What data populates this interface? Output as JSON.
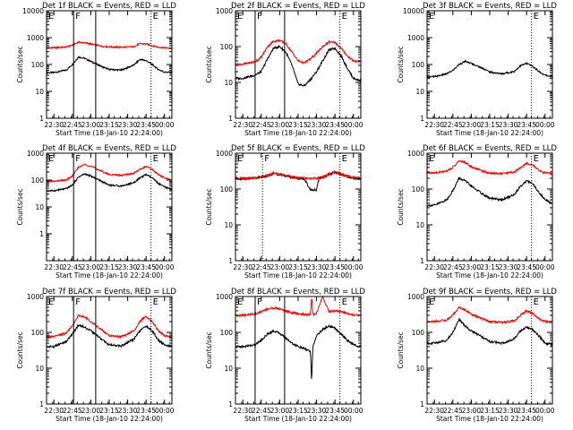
{
  "colors": {
    "events": "#000000",
    "lld": "#ff0000",
    "frame": "#000000",
    "background": "#ffffff"
  },
  "x_tick_labels": [
    "22:30",
    "22:45",
    "23:00",
    "23:15",
    "23:30",
    "23:45",
    "00:00"
  ],
  "x_axis_label": "Start Time (18-Jan-10 22:24:00)",
  "y_axis_label": "Counts/sec",
  "marker_labels": {
    "F": "F",
    "E": "E"
  },
  "chart_data": [
    {
      "type": "line",
      "title": "Det 1f BLACK = Events, RED = LLD",
      "xlabel": "Start Time (18-Jan-10 22:24:00)",
      "ylabel": "Counts/sec",
      "xlim_minutes": [
        -6,
        96
      ],
      "ylim": [
        1,
        10000
      ],
      "yscale": "log",
      "y_tick_labels": [
        "1",
        "10",
        "100",
        "1000",
        "10000"
      ],
      "x": [
        0,
        10,
        15,
        20,
        25,
        30,
        40,
        45,
        55,
        65,
        70,
        75,
        80,
        85,
        90,
        96
      ],
      "series": [
        {
          "name": "BLACK = Events",
          "color": "#000000",
          "values": [
            50,
            62,
            100,
            190,
            170,
            130,
            80,
            65,
            62,
            95,
            155,
            140,
            100,
            65,
            52,
            50
          ]
        },
        {
          "name": "RED = LLD",
          "color": "#ff0000",
          "values": [
            420,
            450,
            520,
            680,
            640,
            580,
            470,
            450,
            440,
            460,
            600,
            580,
            500,
            440,
            420,
            400
          ]
        }
      ],
      "vertical_lines": [
        {
          "x": 16,
          "style": "solid",
          "label": "F"
        },
        {
          "x": 34,
          "style": "solid"
        },
        {
          "x": 79,
          "style": "dotted",
          "label": "E"
        }
      ]
    },
    {
      "type": "line",
      "title": "Det 2f BLACK = Events, RED = LLD",
      "xlabel": "Start Time (18-Jan-10 22:24:00)",
      "ylabel": "Counts/sec",
      "xlim_minutes": [
        -6,
        96
      ],
      "ylim": [
        1,
        1000
      ],
      "yscale": "log",
      "y_tick_labels": [
        "1",
        "10",
        "100",
        "1000"
      ],
      "x": [
        0,
        10,
        15,
        20,
        25,
        30,
        35,
        40,
        45,
        50,
        55,
        60,
        65,
        70,
        75,
        80,
        85,
        90,
        96
      ],
      "series": [
        {
          "name": "BLACK = Events",
          "color": "#000000",
          "values": [
            13,
            16,
            20,
            45,
            90,
            100,
            70,
            30,
            9,
            8,
            12,
            20,
            40,
            80,
            90,
            55,
            25,
            13,
            11
          ]
        },
        {
          "name": "RED = LLD",
          "color": "#ff0000",
          "values": [
            32,
            38,
            50,
            100,
            140,
            150,
            120,
            70,
            40,
            35,
            45,
            65,
            100,
            135,
            130,
            90,
            55,
            40,
            38
          ]
        }
      ],
      "vertical_lines": [
        {
          "x": 10,
          "style": "solid",
          "label": "F"
        },
        {
          "x": 34,
          "style": "solid"
        },
        {
          "x": 79,
          "style": "dotted",
          "label": "E"
        }
      ]
    },
    {
      "type": "line",
      "title": "Det 3f BLACK = Events, RED = LLD",
      "xlabel": "Start Time (18-Jan-10 22:24:00)",
      "ylabel": "Counts/sec",
      "xlim_minutes": [
        -6,
        96
      ],
      "ylim": [
        1,
        10000
      ],
      "yscale": "log",
      "y_tick_labels": [
        "1",
        "10",
        "100",
        "1000",
        "10000"
      ],
      "x": [
        0,
        10,
        15,
        20,
        25,
        30,
        40,
        45,
        55,
        65,
        70,
        75,
        80,
        85,
        90,
        96
      ],
      "series": [
        {
          "name": "BLACK = Events",
          "color": "#000000",
          "values": [
            35,
            45,
            60,
            100,
            130,
            110,
            70,
            52,
            45,
            55,
            90,
            110,
            85,
            55,
            40,
            35
          ]
        }
      ],
      "vertical_lines": [
        {
          "x": 79,
          "style": "dotted",
          "label": "E"
        }
      ]
    },
    {
      "type": "line",
      "title": "Det 4f BLACK = Events, RED = LLD",
      "xlabel": "Start Time (18-Jan-10 22:24:00)",
      "ylabel": "Counts/sec",
      "xlim_minutes": [
        -6,
        96
      ],
      "ylim": [
        0.1,
        1000
      ],
      "yscale": "log",
      "y_tick_labels": [
        "1000",
        "100",
        "10",
        "1"
      ],
      "x": [
        0,
        10,
        15,
        20,
        25,
        30,
        40,
        45,
        55,
        65,
        70,
        75,
        80,
        85,
        90,
        96
      ],
      "series": [
        {
          "name": "BLACK = Events",
          "color": "#000000",
          "values": [
            40,
            48,
            65,
            130,
            170,
            140,
            85,
            65,
            60,
            80,
            120,
            160,
            120,
            75,
            55,
            45
          ]
        },
        {
          "name": "RED = LLD",
          "color": "#ff0000",
          "values": [
            90,
            100,
            140,
            300,
            380,
            330,
            200,
            160,
            150,
            180,
            250,
            320,
            250,
            160,
            120,
            100
          ]
        }
      ],
      "vertical_lines": [
        {
          "x": 16,
          "style": "solid",
          "label": "F"
        },
        {
          "x": 34,
          "style": "solid"
        },
        {
          "x": 79,
          "style": "dotted",
          "label": "E"
        }
      ]
    },
    {
      "type": "line",
      "title": "Det 5f BLACK = Events, RED = LLD",
      "xlabel": "Start Time (18-Jan-10 22:24:00)",
      "ylabel": "Counts/sec",
      "xlim_minutes": [
        -6,
        96
      ],
      "ylim": [
        1,
        1000
      ],
      "yscale": "log",
      "y_tick_labels": [
        "1",
        "10",
        "100",
        "1000"
      ],
      "x": [
        0,
        10,
        20,
        25,
        30,
        40,
        45,
        50,
        55,
        60,
        62,
        65,
        70,
        75,
        80,
        90,
        96
      ],
      "series": [
        {
          "name": "BLACK = Events",
          "color": "#000000",
          "values": [
            195,
            200,
            230,
            270,
            250,
            210,
            200,
            190,
            95,
            95,
            200,
            210,
            250,
            290,
            250,
            200,
            190
          ]
        },
        {
          "name": "RED = LLD",
          "color": "#ff0000",
          "values": [
            200,
            205,
            240,
            280,
            260,
            215,
            205,
            200,
            195,
            200,
            205,
            215,
            260,
            300,
            260,
            210,
            200
          ]
        }
      ],
      "vertical_lines": [
        {
          "x": 16,
          "style": "dotted",
          "label": "F"
        },
        {
          "x": 79,
          "style": "dotted",
          "label": "E"
        }
      ]
    },
    {
      "type": "line",
      "title": "Det 6f BLACK = Events, RED = LLD",
      "xlabel": "Start Time (18-Jan-10 22:24:00)",
      "ylabel": "Counts/sec",
      "xlim_minutes": [
        -6,
        96
      ],
      "ylim": [
        1,
        1000
      ],
      "yscale": "log",
      "y_tick_labels": [
        "1",
        "10",
        "100",
        "1000"
      ],
      "x": [
        0,
        10,
        15,
        20,
        25,
        30,
        40,
        45,
        55,
        65,
        70,
        75,
        80,
        85,
        90,
        96
      ],
      "series": [
        {
          "name": "BLACK = Events",
          "color": "#000000",
          "values": [
            35,
            50,
            90,
            200,
            170,
            120,
            70,
            55,
            50,
            70,
            120,
            170,
            140,
            80,
            50,
            40
          ]
        },
        {
          "name": "RED = LLD",
          "color": "#ff0000",
          "values": [
            280,
            320,
            400,
            600,
            550,
            420,
            310,
            280,
            270,
            300,
            400,
            520,
            470,
            330,
            280,
            260
          ]
        }
      ],
      "vertical_lines": [
        {
          "x": 79,
          "style": "dotted",
          "label": "E"
        }
      ]
    },
    {
      "type": "line",
      "title": "Det 7f BLACK = Events, RED = LLD",
      "xlabel": "Start Time (18-Jan-10 22:24:00)",
      "ylabel": "Counts/sec",
      "xlim_minutes": [
        -6,
        96
      ],
      "ylim": [
        1,
        1000
      ],
      "yscale": "log",
      "y_tick_labels": [
        "1",
        "10",
        "100",
        "1000"
      ],
      "x": [
        0,
        10,
        15,
        20,
        25,
        30,
        40,
        45,
        55,
        65,
        70,
        75,
        80,
        85,
        90,
        96
      ],
      "series": [
        {
          "name": "BLACK = Events",
          "color": "#000000",
          "values": [
            40,
            55,
            90,
            160,
            140,
            110,
            60,
            45,
            42,
            65,
            110,
            150,
            110,
            60,
            45,
            40
          ]
        },
        {
          "name": "RED = LLD",
          "color": "#ff0000",
          "values": [
            75,
            95,
            150,
            300,
            270,
            200,
            110,
            80,
            75,
            110,
            200,
            280,
            200,
            110,
            80,
            75
          ]
        }
      ],
      "vertical_lines": [
        {
          "x": 16,
          "style": "solid",
          "label": "F"
        },
        {
          "x": 34,
          "style": "solid"
        },
        {
          "x": 79,
          "style": "dotted",
          "label": "E"
        }
      ]
    },
    {
      "type": "line",
      "title": "Det 8f BLACK = Events, RED = LLD",
      "xlabel": "Start Time (18-Jan-10 22:24:00)",
      "ylabel": "Counts/sec",
      "xlim_minutes": [
        -6,
        96
      ],
      "ylim": [
        1,
        1000
      ],
      "yscale": "log",
      "y_tick_labels": [
        "1",
        "10",
        "100",
        "1000"
      ],
      "x": [
        0,
        10,
        15,
        20,
        25,
        30,
        35,
        40,
        45,
        50,
        55,
        56,
        57,
        60,
        65,
        70,
        75,
        80,
        85,
        90,
        96
      ],
      "series": [
        {
          "name": "BLACK = Events",
          "color": "#000000",
          "values": [
            40,
            45,
            60,
            90,
            110,
            95,
            70,
            50,
            40,
            35,
            30,
            4,
            40,
            80,
            120,
            150,
            130,
            90,
            60,
            45,
            40
          ]
        },
        {
          "name": "RED = LLD",
          "color": "#ff0000",
          "values": [
            300,
            320,
            380,
            450,
            480,
            450,
            400,
            350,
            330,
            320,
            310,
            1000,
            320,
            340,
            1000,
            380,
            400,
            380,
            340,
            310,
            300
          ]
        }
      ],
      "vertical_lines": [
        {
          "x": 10,
          "style": "solid",
          "label": "F"
        },
        {
          "x": 34,
          "style": "solid"
        },
        {
          "x": 79,
          "style": "dotted",
          "label": "E"
        }
      ]
    },
    {
      "type": "line",
      "title": "Det 9f BLACK = Events, RED = LLD",
      "xlabel": "Start Time (18-Jan-10 22:24:00)",
      "ylabel": "Counts/sec",
      "xlim_minutes": [
        -6,
        96
      ],
      "ylim": [
        1,
        1000
      ],
      "yscale": "log",
      "y_tick_labels": [
        "1",
        "10",
        "100",
        "1000"
      ],
      "x": [
        0,
        10,
        15,
        20,
        25,
        30,
        40,
        45,
        55,
        65,
        70,
        75,
        80,
        85,
        90,
        96
      ],
      "series": [
        {
          "name": "BLACK = Events",
          "color": "#000000",
          "values": [
            50,
            60,
            100,
            230,
            150,
            110,
            70,
            55,
            50,
            65,
            110,
            140,
            120,
            80,
            50,
            45
          ]
        },
        {
          "name": "RED = LLD",
          "color": "#ff0000",
          "values": [
            200,
            220,
            300,
            500,
            420,
            320,
            230,
            200,
            190,
            210,
            300,
            400,
            330,
            240,
            200,
            190
          ]
        }
      ],
      "vertical_lines": [
        {
          "x": 79,
          "style": "dotted",
          "label": "E"
        }
      ]
    }
  ]
}
